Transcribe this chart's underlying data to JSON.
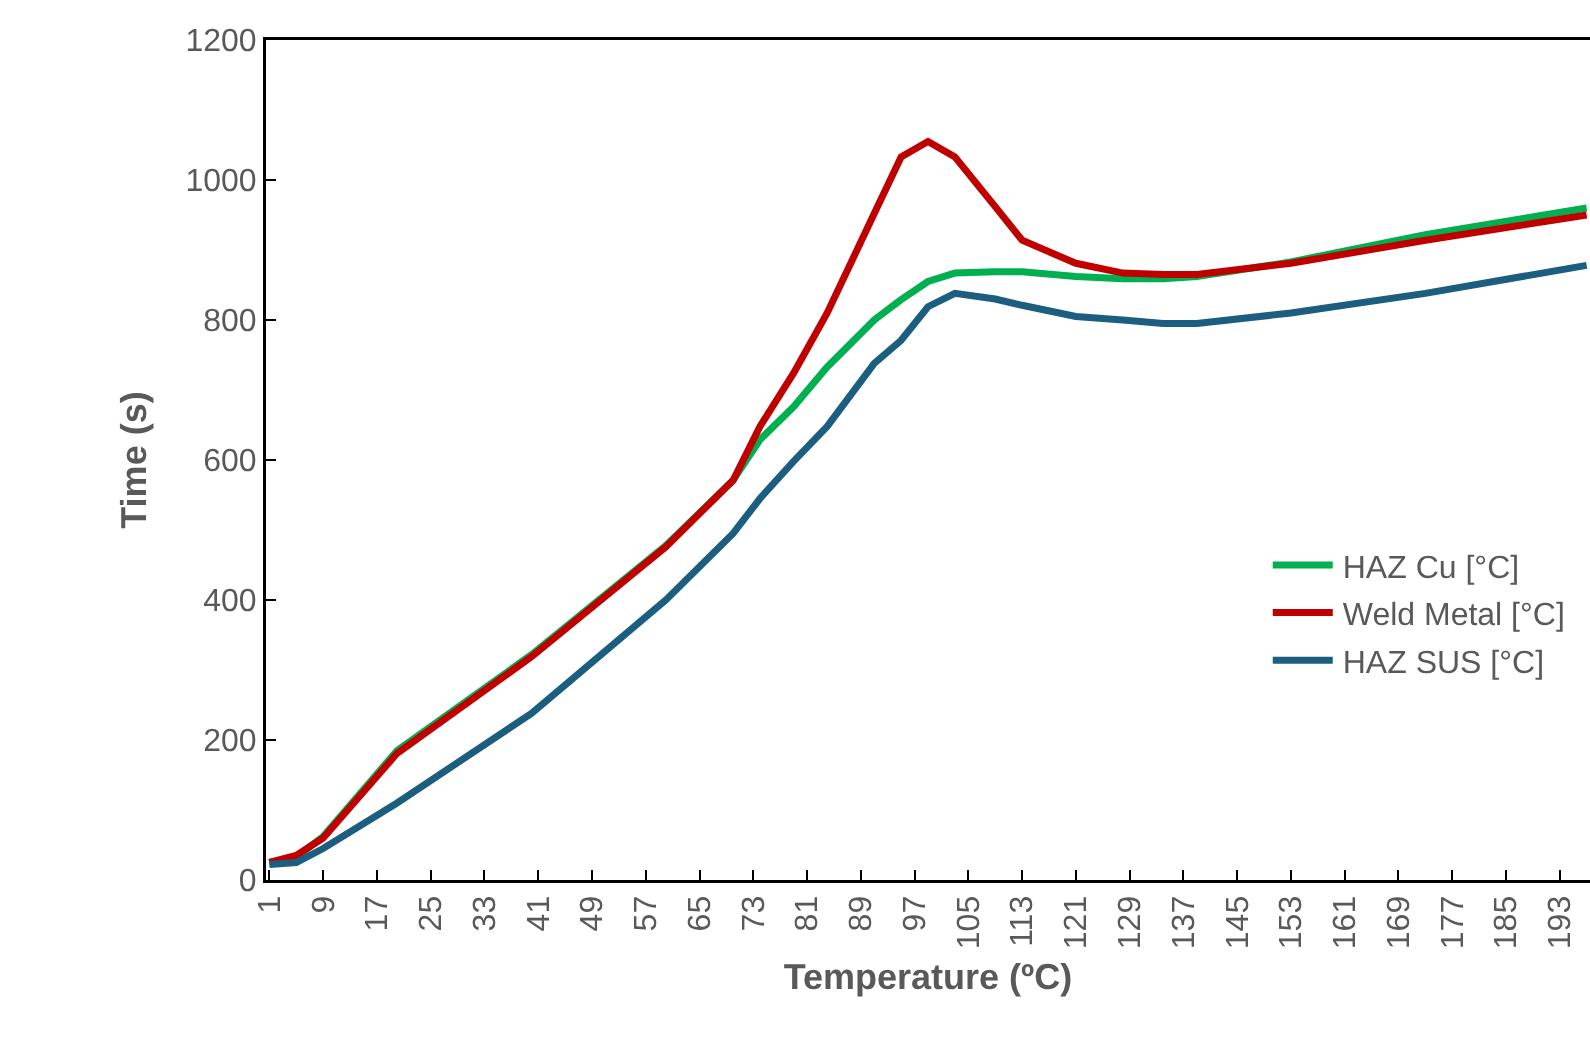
{
  "chart_data": {
    "type": "line",
    "xlabel": "Temperature (ºC)",
    "ylabel": "Time (s)",
    "x": [
      1,
      5,
      9,
      20,
      40,
      60,
      70,
      74,
      79,
      84,
      91,
      95,
      99,
      103,
      109,
      113,
      121,
      128,
      134,
      139,
      153,
      173,
      197
    ],
    "xlim": [
      0.5,
      197.5
    ],
    "xticks": [
      1,
      9,
      17,
      25,
      33,
      41,
      49,
      57,
      65,
      73,
      81,
      89,
      97,
      105,
      113,
      121,
      129,
      137,
      145,
      153,
      161,
      169,
      177,
      185,
      193
    ],
    "ylim": [
      0,
      1200
    ],
    "yticks": [
      0,
      200,
      400,
      600,
      800,
      1000,
      1200
    ],
    "grid": false,
    "legend": "bottom right",
    "marker": "none",
    "line_style": "solid",
    "series": [
      {
        "name": "HAZ Cu [°C]",
        "color": "#00b050",
        "values": [
          25,
          33,
          62,
          185,
          322,
          478,
          571,
          629,
          676,
          733,
          800,
          829,
          855,
          867,
          869,
          869,
          862,
          859,
          859,
          862,
          883,
          922,
          960
        ]
      },
      {
        "name": "Weld Metal [°C]",
        "color": "#c00000",
        "values": [
          25,
          35,
          60,
          181,
          319,
          476,
          571,
          648,
          724,
          810,
          952,
          1033,
          1055,
          1033,
          962,
          914,
          881,
          867,
          865,
          865,
          881,
          914,
          950
        ]
      },
      {
        "name": "HAZ SUS [°C]",
        "color": "#1b5e80",
        "values": [
          22,
          25,
          45,
          110,
          238,
          400,
          495,
          545,
          598,
          648,
          738,
          771,
          819,
          838,
          830,
          821,
          805,
          800,
          795,
          795,
          810,
          838,
          878
        ]
      }
    ]
  }
}
